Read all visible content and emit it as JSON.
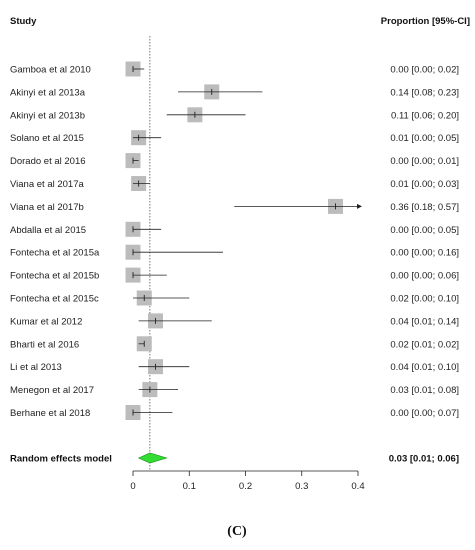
{
  "chart_data": {
    "type": "forest",
    "headers": {
      "left": "Study",
      "right": "Proportion [95%-CI]"
    },
    "studies": [
      {
        "label": "Gamboa et al 2010",
        "est": 0.0,
        "lo": 0.0,
        "hi": 0.02,
        "ci_text": "0.00 [0.00; 0.02]"
      },
      {
        "label": "Akinyi et al 2013a",
        "est": 0.14,
        "lo": 0.08,
        "hi": 0.23,
        "ci_text": "0.14 [0.08; 0.23]"
      },
      {
        "label": "Akinyi et al 2013b",
        "est": 0.11,
        "lo": 0.06,
        "hi": 0.2,
        "ci_text": "0.11 [0.06; 0.20]"
      },
      {
        "label": "Solano et al 2015",
        "est": 0.01,
        "lo": 0.0,
        "hi": 0.05,
        "ci_text": "0.01 [0.00; 0.05]"
      },
      {
        "label": "Dorado et al 2016",
        "est": 0.0,
        "lo": 0.0,
        "hi": 0.01,
        "ci_text": "0.00 [0.00; 0.01]"
      },
      {
        "label": "Viana et al 2017a",
        "est": 0.01,
        "lo": 0.0,
        "hi": 0.03,
        "ci_text": "0.01 [0.00; 0.03]"
      },
      {
        "label": "Viana et al 2017b",
        "est": 0.36,
        "lo": 0.18,
        "hi": 0.57,
        "ci_text": "0.36 [0.18; 0.57]"
      },
      {
        "label": "Abdalla et al 2015",
        "est": 0.0,
        "lo": 0.0,
        "hi": 0.05,
        "ci_text": "0.00 [0.00; 0.05]"
      },
      {
        "label": "Fontecha et al 2015a",
        "est": 0.0,
        "lo": 0.0,
        "hi": 0.16,
        "ci_text": "0.00 [0.00; 0.16]"
      },
      {
        "label": "Fontecha et al 2015b",
        "est": 0.0,
        "lo": 0.0,
        "hi": 0.06,
        "ci_text": "0.00 [0.00; 0.06]"
      },
      {
        "label": "Fontecha et al 2015c",
        "est": 0.02,
        "lo": 0.0,
        "hi": 0.1,
        "ci_text": "0.02 [0.00; 0.10]"
      },
      {
        "label": "Kumar et al 2012",
        "est": 0.04,
        "lo": 0.01,
        "hi": 0.14,
        "ci_text": "0.04 [0.01; 0.14]"
      },
      {
        "label": "Bharti et al 2016",
        "est": 0.02,
        "lo": 0.01,
        "hi": 0.02,
        "ci_text": "0.02 [0.01; 0.02]"
      },
      {
        "label": "Li et al 2013",
        "est": 0.04,
        "lo": 0.01,
        "hi": 0.1,
        "ci_text": "0.04 [0.01; 0.10]"
      },
      {
        "label": "Menegon et al 2017",
        "est": 0.03,
        "lo": 0.01,
        "hi": 0.08,
        "ci_text": "0.03 [0.01; 0.08]"
      },
      {
        "label": "Berhane et al 2018",
        "est": 0.0,
        "lo": 0.0,
        "hi": 0.07,
        "ci_text": "0.00 [0.00; 0.07]"
      }
    ],
    "summary": {
      "label": "Random effects model",
      "est": 0.03,
      "lo": 0.01,
      "hi": 0.06,
      "ci_text": "0.03 [0.01; 0.06]"
    },
    "x_ticks": [
      0,
      0.1,
      0.2,
      0.3,
      0.4
    ],
    "x_tick_labels": [
      "0",
      "0.1",
      "0.2",
      "0.3",
      "0.4"
    ],
    "xlim": [
      0,
      0.4
    ],
    "panel_label": "(C)",
    "colors": {
      "box": "#bcbcbc",
      "diamond": "#33dd33",
      "line": "#222222"
    }
  }
}
